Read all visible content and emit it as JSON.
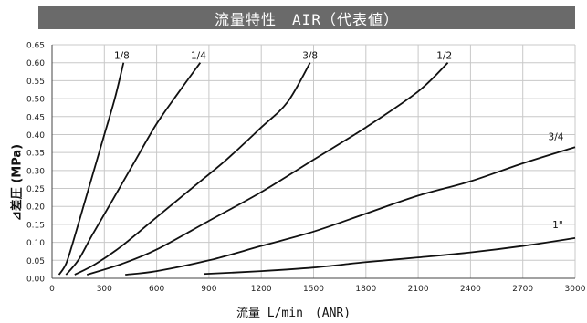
{
  "chart_data": {
    "type": "line",
    "title": "流量特性　AIR（代表値）",
    "xlabel": "流量 L/min　(ANR)",
    "ylabel": "⊿差圧 (MPa)",
    "xlim": [
      0,
      3000
    ],
    "ylim": [
      0,
      0.65
    ],
    "xticks": [
      0,
      300,
      600,
      900,
      1200,
      1500,
      1800,
      2100,
      2400,
      2700,
      3000
    ],
    "xtick_labels": [
      "0",
      "300",
      "600",
      "900",
      "1200",
      "1500",
      "1800",
      "2100",
      "2400",
      "2700",
      "3000"
    ],
    "yticks": [
      0,
      0.05,
      0.1,
      0.15,
      0.2,
      0.25,
      0.3,
      0.35,
      0.4,
      0.45,
      0.5,
      0.55,
      0.6,
      0.65
    ],
    "ytick_labels": [
      "0.00",
      "0.05",
      "0.10",
      "0.15",
      "0.20",
      "0.25",
      "0.30",
      "0.35",
      "0.40",
      "0.45",
      "0.50",
      "0.55",
      "0.60",
      "0.65"
    ],
    "grid": true,
    "series": [
      {
        "name": "1/8",
        "points": [
          [
            40,
            0.01
          ],
          [
            80,
            0.04
          ],
          [
            120,
            0.1
          ],
          [
            180,
            0.2
          ],
          [
            240,
            0.3
          ],
          [
            300,
            0.4
          ],
          [
            360,
            0.5
          ],
          [
            410,
            0.6
          ]
        ]
      },
      {
        "name": "1/4",
        "points": [
          [
            80,
            0.01
          ],
          [
            150,
            0.05
          ],
          [
            230,
            0.12
          ],
          [
            350,
            0.22
          ],
          [
            480,
            0.33
          ],
          [
            600,
            0.43
          ],
          [
            730,
            0.52
          ],
          [
            850,
            0.6
          ]
        ]
      },
      {
        "name": "3/8",
        "points": [
          [
            130,
            0.01
          ],
          [
            250,
            0.04
          ],
          [
            400,
            0.09
          ],
          [
            600,
            0.17
          ],
          [
            800,
            0.25
          ],
          [
            1000,
            0.33
          ],
          [
            1200,
            0.42
          ],
          [
            1350,
            0.49
          ],
          [
            1480,
            0.6
          ]
        ]
      },
      {
        "name": "1/2",
        "points": [
          [
            200,
            0.01
          ],
          [
            400,
            0.04
          ],
          [
            600,
            0.08
          ],
          [
            900,
            0.16
          ],
          [
            1200,
            0.24
          ],
          [
            1500,
            0.33
          ],
          [
            1800,
            0.42
          ],
          [
            2100,
            0.52
          ],
          [
            2270,
            0.6
          ]
        ]
      },
      {
        "name": "3/4",
        "points": [
          [
            420,
            0.01
          ],
          [
            600,
            0.02
          ],
          [
            900,
            0.05
          ],
          [
            1200,
            0.09
          ],
          [
            1500,
            0.13
          ],
          [
            1800,
            0.18
          ],
          [
            2100,
            0.23
          ],
          [
            2400,
            0.27
          ],
          [
            2700,
            0.32
          ],
          [
            3000,
            0.365
          ]
        ]
      },
      {
        "name": "1\"",
        "points": [
          [
            870,
            0.012
          ],
          [
            1200,
            0.02
          ],
          [
            1500,
            0.03
          ],
          [
            1800,
            0.045
          ],
          [
            2100,
            0.058
          ],
          [
            2400,
            0.072
          ],
          [
            2700,
            0.09
          ],
          [
            3000,
            0.112
          ]
        ]
      }
    ],
    "series_labels": [
      {
        "text": "1/8",
        "x": 400,
        "y": 0.6
      },
      {
        "text": "1/4",
        "x": 840,
        "y": 0.6
      },
      {
        "text": "3/8",
        "x": 1480,
        "y": 0.6
      },
      {
        "text": "1/2",
        "x": 2250,
        "y": 0.6
      },
      {
        "text": "3/4",
        "x": 2890,
        "y": 0.375
      },
      {
        "text": "1\"",
        "x": 2900,
        "y": 0.13
      }
    ]
  }
}
